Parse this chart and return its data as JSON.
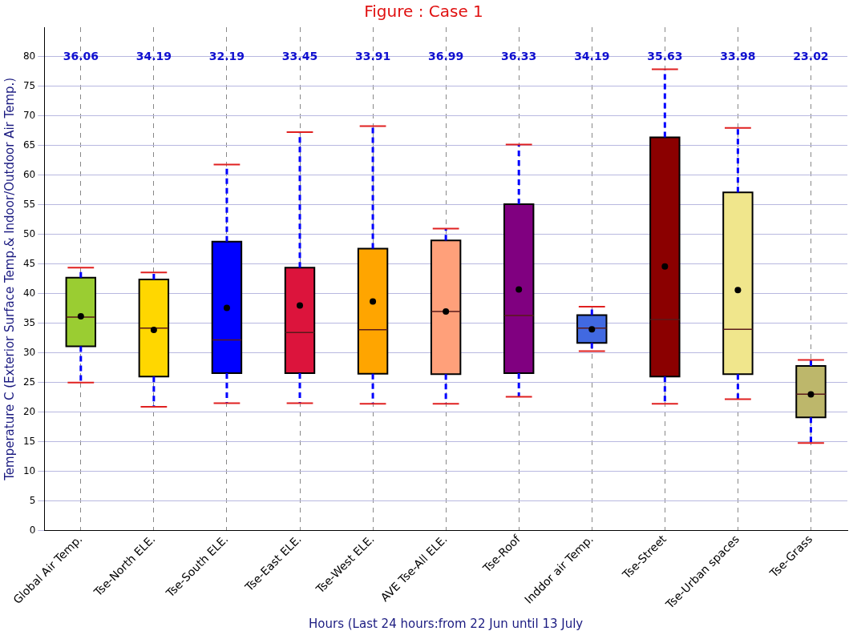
{
  "chart_data": {
    "type": "box",
    "title": "Figure : Case 1",
    "xlabel": "Hours (Last 24 hours:from 22 Jun until 13 July",
    "ylabel": "Temperature C (Exterior Surface Temp.& Indoor/Outdoor Air Temp.)",
    "categories": [
      "Global Air Temp.",
      "Tse-North ELE.",
      "Tse-South ELE.",
      "Tse-East ELE.",
      "Tse-West ELE.",
      "AVE Tse-All ELE.",
      "Tse-Roof",
      "Inddor air Temp.",
      "Tse-Street",
      "Tse-Urban spaces",
      "Tse-Grass"
    ],
    "colors": [
      "#9acd32",
      "#ffd700",
      "#0000ff",
      "#dc143c",
      "#ffa500",
      "#ffa07a",
      "#800080",
      "#4169e1",
      "#8b0000",
      "#f0e68c",
      "#bdb76b"
    ],
    "boxes": [
      {
        "low": 25.0,
        "q1": 31.1,
        "median": 36.06,
        "q3": 42.7,
        "high": 44.4,
        "mean": 36.2
      },
      {
        "low": 20.9,
        "q1": 26.0,
        "median": 34.19,
        "q3": 42.4,
        "high": 43.6,
        "mean": 33.9
      },
      {
        "low": 21.5,
        "q1": 26.6,
        "median": 32.19,
        "q3": 48.8,
        "high": 61.8,
        "mean": 37.6
      },
      {
        "low": 21.5,
        "q1": 26.6,
        "median": 33.45,
        "q3": 44.4,
        "high": 67.3,
        "mean": 38.0
      },
      {
        "low": 21.4,
        "q1": 26.5,
        "median": 33.91,
        "q3": 47.6,
        "high": 68.3,
        "mean": 38.7
      },
      {
        "low": 21.4,
        "q1": 26.4,
        "median": 36.99,
        "q3": 49.0,
        "high": 51.0,
        "mean": 37.0
      },
      {
        "low": 22.6,
        "q1": 26.6,
        "median": 36.33,
        "q3": 55.1,
        "high": 65.2,
        "mean": 40.7
      },
      {
        "low": 30.3,
        "q1": 31.7,
        "median": 34.19,
        "q3": 36.4,
        "high": 37.8,
        "mean": 34.0
      },
      {
        "low": 21.4,
        "q1": 26.0,
        "median": 35.63,
        "q3": 66.4,
        "high": 77.9,
        "mean": 44.6
      },
      {
        "low": 22.2,
        "q1": 26.4,
        "median": 33.98,
        "q3": 57.1,
        "high": 68.0,
        "mean": 40.6
      },
      {
        "low": 14.8,
        "q1": 19.1,
        "median": 23.02,
        "q3": 27.8,
        "high": 28.8,
        "mean": 23.0
      }
    ],
    "annotations": [
      "36.06",
      "34.19",
      "32.19",
      "33.45",
      "33.91",
      "36.99",
      "36.33",
      "34.19",
      "35.63",
      "33.98",
      "23.02"
    ],
    "ylim": [
      0,
      85
    ],
    "yticks": [
      0,
      5,
      10,
      15,
      20,
      25,
      30,
      35,
      40,
      45,
      50,
      55,
      60,
      65,
      70,
      75,
      80
    ],
    "grid": true,
    "legend": false
  }
}
